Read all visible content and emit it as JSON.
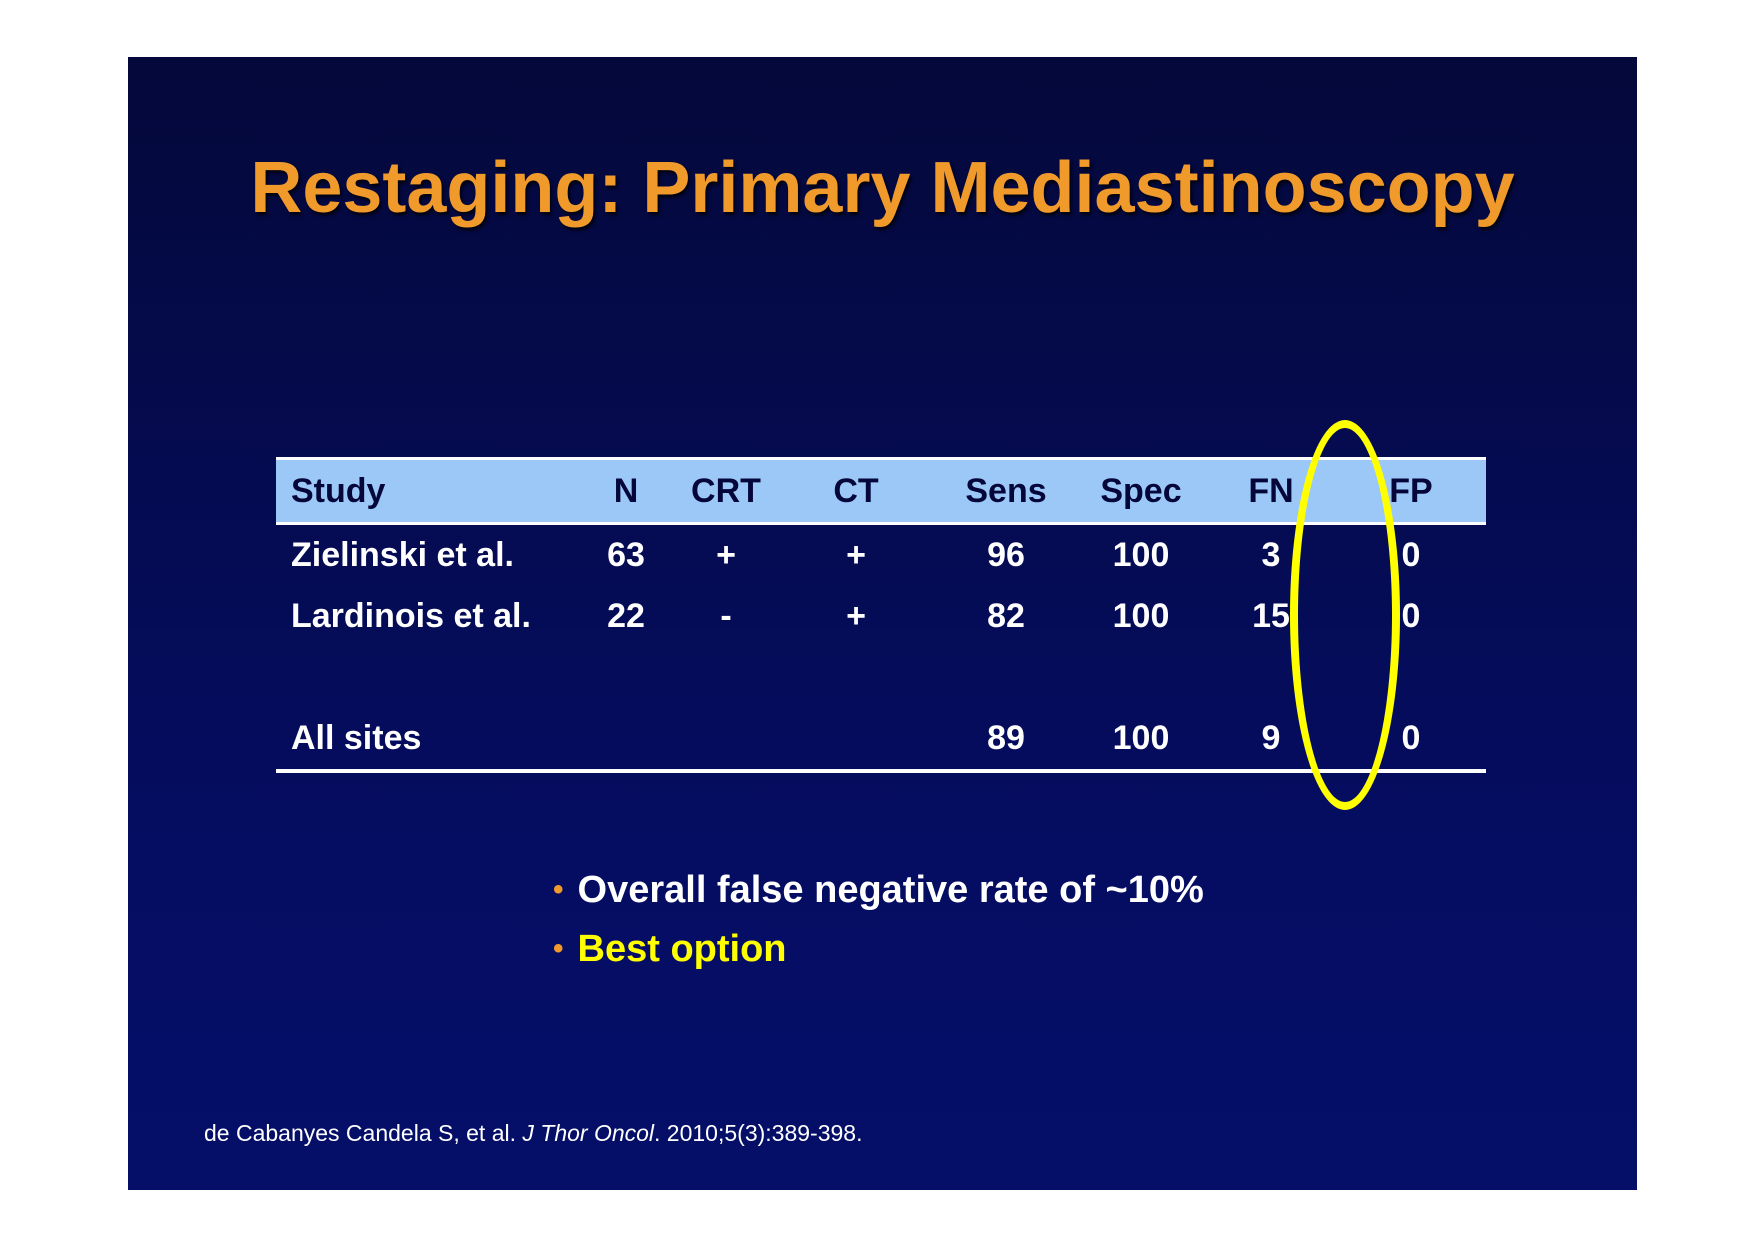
{
  "slide": {
    "title": "Restaging: Primary Mediastinoscopy",
    "table": {
      "headers": [
        "Study",
        "N",
        "CRT",
        "CT",
        "Sens",
        "Spec",
        "FN",
        "FP"
      ],
      "rows": [
        [
          "Zielinski et al.",
          "63",
          "+",
          "+",
          "96",
          "100",
          "3",
          "0"
        ],
        [
          "Lardinois et al.",
          "22",
          "-",
          "+",
          "82",
          "100",
          "15",
          "0"
        ]
      ],
      "total": [
        "All sites",
        "",
        "",
        "",
        "89",
        "100",
        "9",
        "0"
      ]
    },
    "highlight": {
      "color": "#ffff00",
      "column": "FN"
    },
    "bullets": [
      {
        "marker": "•",
        "text": "Overall false negative rate of ~10%",
        "color": "#ffffff"
      },
      {
        "marker": "•",
        "text": "Best option",
        "color": "#ffff00"
      }
    ],
    "citation": {
      "authors": "de Cabanyes Candela S, et al.",
      "journal": "J Thor Oncol",
      "details": ". 2010;5(3):389-398."
    },
    "colors": {
      "title": "#f19a2c",
      "header_bg": "#9cc8f8",
      "background": "#050b4f"
    }
  }
}
